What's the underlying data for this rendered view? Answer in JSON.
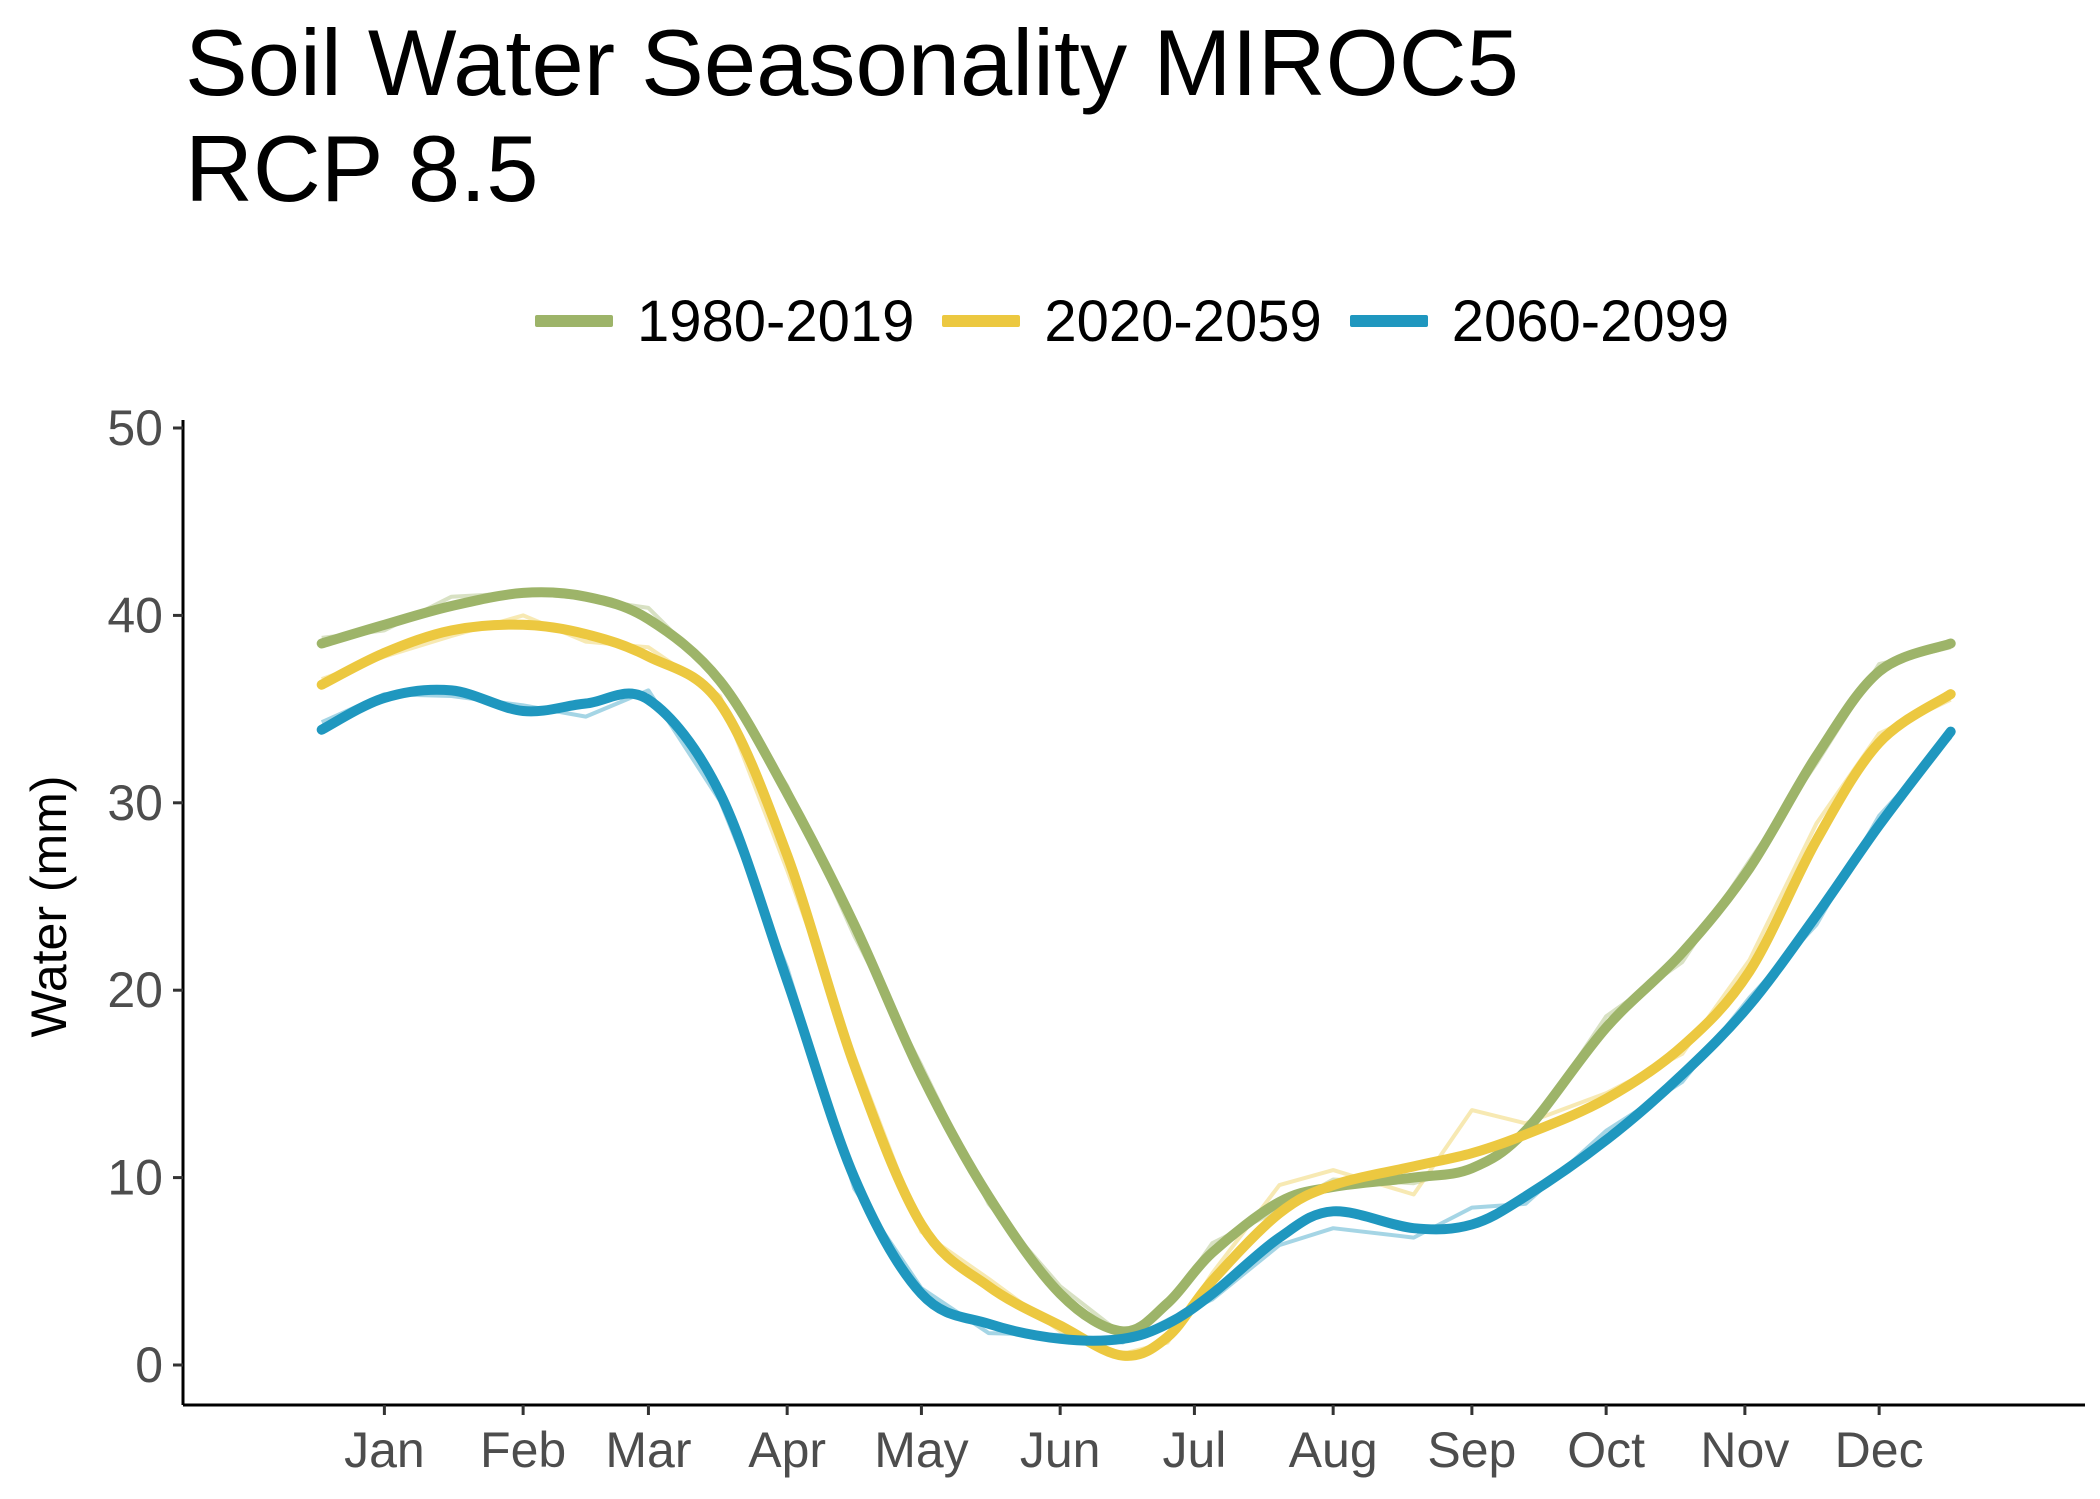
{
  "chart_data": {
    "type": "line",
    "title": [
      "Soil Water Seasonality MIROC5",
      "RCP 8.5"
    ],
    "xlabel": "",
    "ylabel": "Water (mm)",
    "ylim": [
      0,
      50
    ],
    "yticks": [
      0,
      10,
      20,
      30,
      40,
      50
    ],
    "x_unit": "day of year",
    "xlim": [
      -30,
      395
    ],
    "x_ticks": [
      {
        "label": "Jan",
        "x": 15
      },
      {
        "label": "Feb",
        "x": 46
      },
      {
        "label": "Mar",
        "x": 74
      },
      {
        "label": "Apr",
        "x": 105
      },
      {
        "label": "May",
        "x": 135
      },
      {
        "label": "Jun",
        "x": 166
      },
      {
        "label": "Jul",
        "x": 196
      },
      {
        "label": "Aug",
        "x": 227
      },
      {
        "label": "Sep",
        "x": 258
      },
      {
        "label": "Oct",
        "x": 288
      },
      {
        "label": "Nov",
        "x": 319
      },
      {
        "label": "Dec",
        "x": 349
      }
    ],
    "grid": false,
    "legend_position": "top",
    "series": [
      {
        "name": "1980-2019",
        "color": "#9db469",
        "x": [
          1,
          15,
          30,
          46,
          60,
          74,
          90,
          105,
          120,
          135,
          150,
          166,
          180,
          190,
          200,
          215,
          227,
          245,
          258,
          270,
          288,
          305,
          320,
          335,
          349,
          365
        ],
        "smooth": [
          38.5,
          39.5,
          40.5,
          41.2,
          41,
          39.8,
          36.5,
          30.5,
          23.5,
          15.5,
          9,
          3.8,
          1.8,
          3.3,
          6,
          8.7,
          9.5,
          10,
          10.5,
          12.5,
          18,
          22,
          26.5,
          32.5,
          37,
          38.5
        ],
        "daily": [
          38.8,
          39.2,
          41.0,
          41.2,
          40.9,
          40.4,
          36.6,
          30.9,
          22.9,
          16.0,
          8.6,
          4.2,
          1.6,
          3.1,
          6.5,
          8.3,
          9.9,
          9.7,
          10.6,
          12.2,
          18.6,
          21.5,
          26.9,
          32.1,
          37.4,
          38.3
        ]
      },
      {
        "name": "2020-2059",
        "color": "#ecc840",
        "x": [
          1,
          15,
          30,
          46,
          60,
          74,
          90,
          105,
          120,
          135,
          150,
          166,
          180,
          190,
          200,
          215,
          227,
          245,
          258,
          270,
          288,
          305,
          320,
          335,
          349,
          365
        ],
        "smooth": [
          36.3,
          38,
          39.2,
          39.5,
          39,
          37.8,
          35.3,
          27.2,
          16,
          7.5,
          4.2,
          2.1,
          0.5,
          1.5,
          4.5,
          8.1,
          9.6,
          10.6,
          11.3,
          12.3,
          14.2,
          17,
          21,
          28,
          33.2,
          35.8
        ],
        "daily": [
          36.6,
          37.8,
          38.9,
          40.0,
          38.6,
          38.3,
          35.7,
          26.4,
          16.5,
          7.1,
          4.6,
          1.8,
          0.6,
          1.2,
          4.9,
          9.6,
          10.4,
          9.1,
          13.6,
          12.9,
          14.5,
          16.6,
          21.6,
          28.9,
          33.7,
          35.5
        ]
      },
      {
        "name": "2060-2099",
        "color": "#1f97bf",
        "x": [
          1,
          15,
          30,
          46,
          60,
          74,
          90,
          105,
          120,
          135,
          150,
          166,
          180,
          190,
          200,
          215,
          227,
          245,
          258,
          270,
          288,
          305,
          320,
          335,
          349,
          365
        ],
        "smooth": [
          33.9,
          35.6,
          36,
          34.9,
          35.3,
          35.5,
          30.5,
          20.5,
          10,
          3.8,
          2.2,
          1.4,
          1.4,
          2.2,
          3.8,
          6.8,
          8.2,
          7.3,
          7.5,
          9,
          12,
          15.5,
          19.2,
          24,
          28.8,
          33.8
        ],
        "daily": [
          34.3,
          35.8,
          35.7,
          35.2,
          34.6,
          36.0,
          30.1,
          21.2,
          9.4,
          4.1,
          1.7,
          1.6,
          1.2,
          2.4,
          3.5,
          6.4,
          7.3,
          6.8,
          8.4,
          8.6,
          12.5,
          15.1,
          19.6,
          23.5,
          29.3,
          33.5
        ]
      }
    ]
  }
}
